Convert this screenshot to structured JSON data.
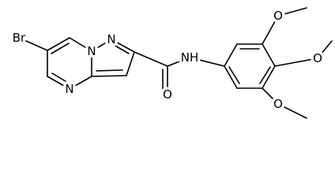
{
  "atoms": {
    "br": "Br",
    "n_bridge": "N",
    "n_pyrazole": "N",
    "n_pyrimidine": "N",
    "amide_n": "NH",
    "carbonyl_o": "O",
    "methoxy_o_top": "O",
    "methoxy_o_middle": "O",
    "methoxy_o_bottom": "O"
  }
}
